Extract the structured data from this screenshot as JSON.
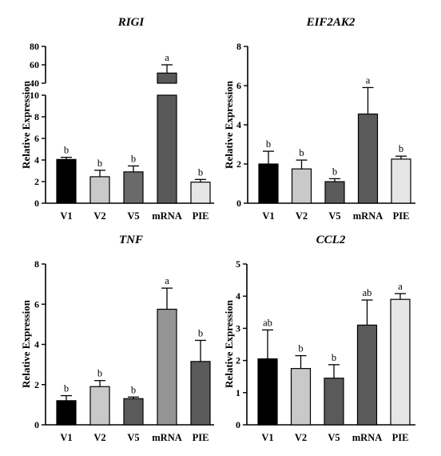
{
  "figure": {
    "bar_colors": [
      "#000000",
      "#c9c9c9",
      "#4f4f4f",
      "#5a5a5a",
      "#e6e6e6"
    ]
  },
  "chart_data": [
    {
      "type": "bar",
      "title": "RIGI",
      "ylabel": "Relative Expression",
      "categories": [
        "V1",
        "V2",
        "V5",
        "mRNA",
        "PIE"
      ],
      "values": [
        4.05,
        2.45,
        2.9,
        51,
        1.95
      ],
      "errors": [
        0.2,
        0.6,
        0.55,
        9,
        0.25
      ],
      "letters": [
        "b",
        "b",
        "b",
        "a",
        "b"
      ],
      "colors": [
        "#000000",
        "#c9c9c9",
        "#6a6a6a",
        "#595959",
        "#e6e6e6"
      ],
      "broken_axis": true,
      "ylim_lower": [
        0,
        10
      ],
      "ylim_upper": [
        40,
        80
      ],
      "yticks_lower": [
        "0",
        "2",
        "4",
        "6",
        "8",
        "10"
      ],
      "yticks_upper": [
        "40",
        "60",
        "80"
      ],
      "grid": false
    },
    {
      "type": "bar",
      "title": "EIF2AK2",
      "ylabel": "Relative Expression",
      "categories": [
        "V1",
        "V2",
        "V5",
        "mRNA",
        "PIE"
      ],
      "values": [
        2.0,
        1.75,
        1.1,
        4.55,
        2.25
      ],
      "errors": [
        0.65,
        0.45,
        0.15,
        1.35,
        0.15
      ],
      "letters": [
        "b",
        "b",
        "b",
        "a",
        "b"
      ],
      "colors": [
        "#000000",
        "#c9c9c9",
        "#5a5a5a",
        "#5a5a5a",
        "#e6e6e6"
      ],
      "ylim": [
        0,
        8
      ],
      "yticks": [
        "0",
        "2",
        "4",
        "6",
        "8"
      ],
      "grid": false
    },
    {
      "type": "bar",
      "title": "TNF",
      "ylabel": "Relative Expression",
      "categories": [
        "V1",
        "V2",
        "V5",
        "mRNA",
        "PIE"
      ],
      "values": [
        1.2,
        1.9,
        1.3,
        5.75,
        3.15
      ],
      "errors": [
        0.25,
        0.3,
        0.08,
        1.05,
        1.05
      ],
      "letters": [
        "b",
        "b",
        "b",
        "a",
        "b"
      ],
      "colors": [
        "#000000",
        "#c9c9c9",
        "#5a5a5a",
        "#959595",
        "#5a5a5a"
      ],
      "ylim": [
        0,
        8
      ],
      "yticks": [
        "0",
        "2",
        "4",
        "6",
        "8"
      ],
      "grid": false
    },
    {
      "type": "bar",
      "title": "CCL2",
      "ylabel": "Relative Expression",
      "categories": [
        "V1",
        "V2",
        "V5",
        "mRNA",
        "PIE"
      ],
      "values": [
        2.05,
        1.75,
        1.45,
        3.1,
        3.9
      ],
      "errors": [
        0.9,
        0.4,
        0.42,
        0.78,
        0.18
      ],
      "letters": [
        "ab",
        "b",
        "b",
        "ab",
        "a"
      ],
      "colors": [
        "#000000",
        "#c9c9c9",
        "#5a5a5a",
        "#5a5a5a",
        "#e6e6e6"
      ],
      "ylim": [
        0,
        5
      ],
      "yticks": [
        "0",
        "1",
        "2",
        "3",
        "4",
        "5"
      ],
      "grid": false
    }
  ]
}
